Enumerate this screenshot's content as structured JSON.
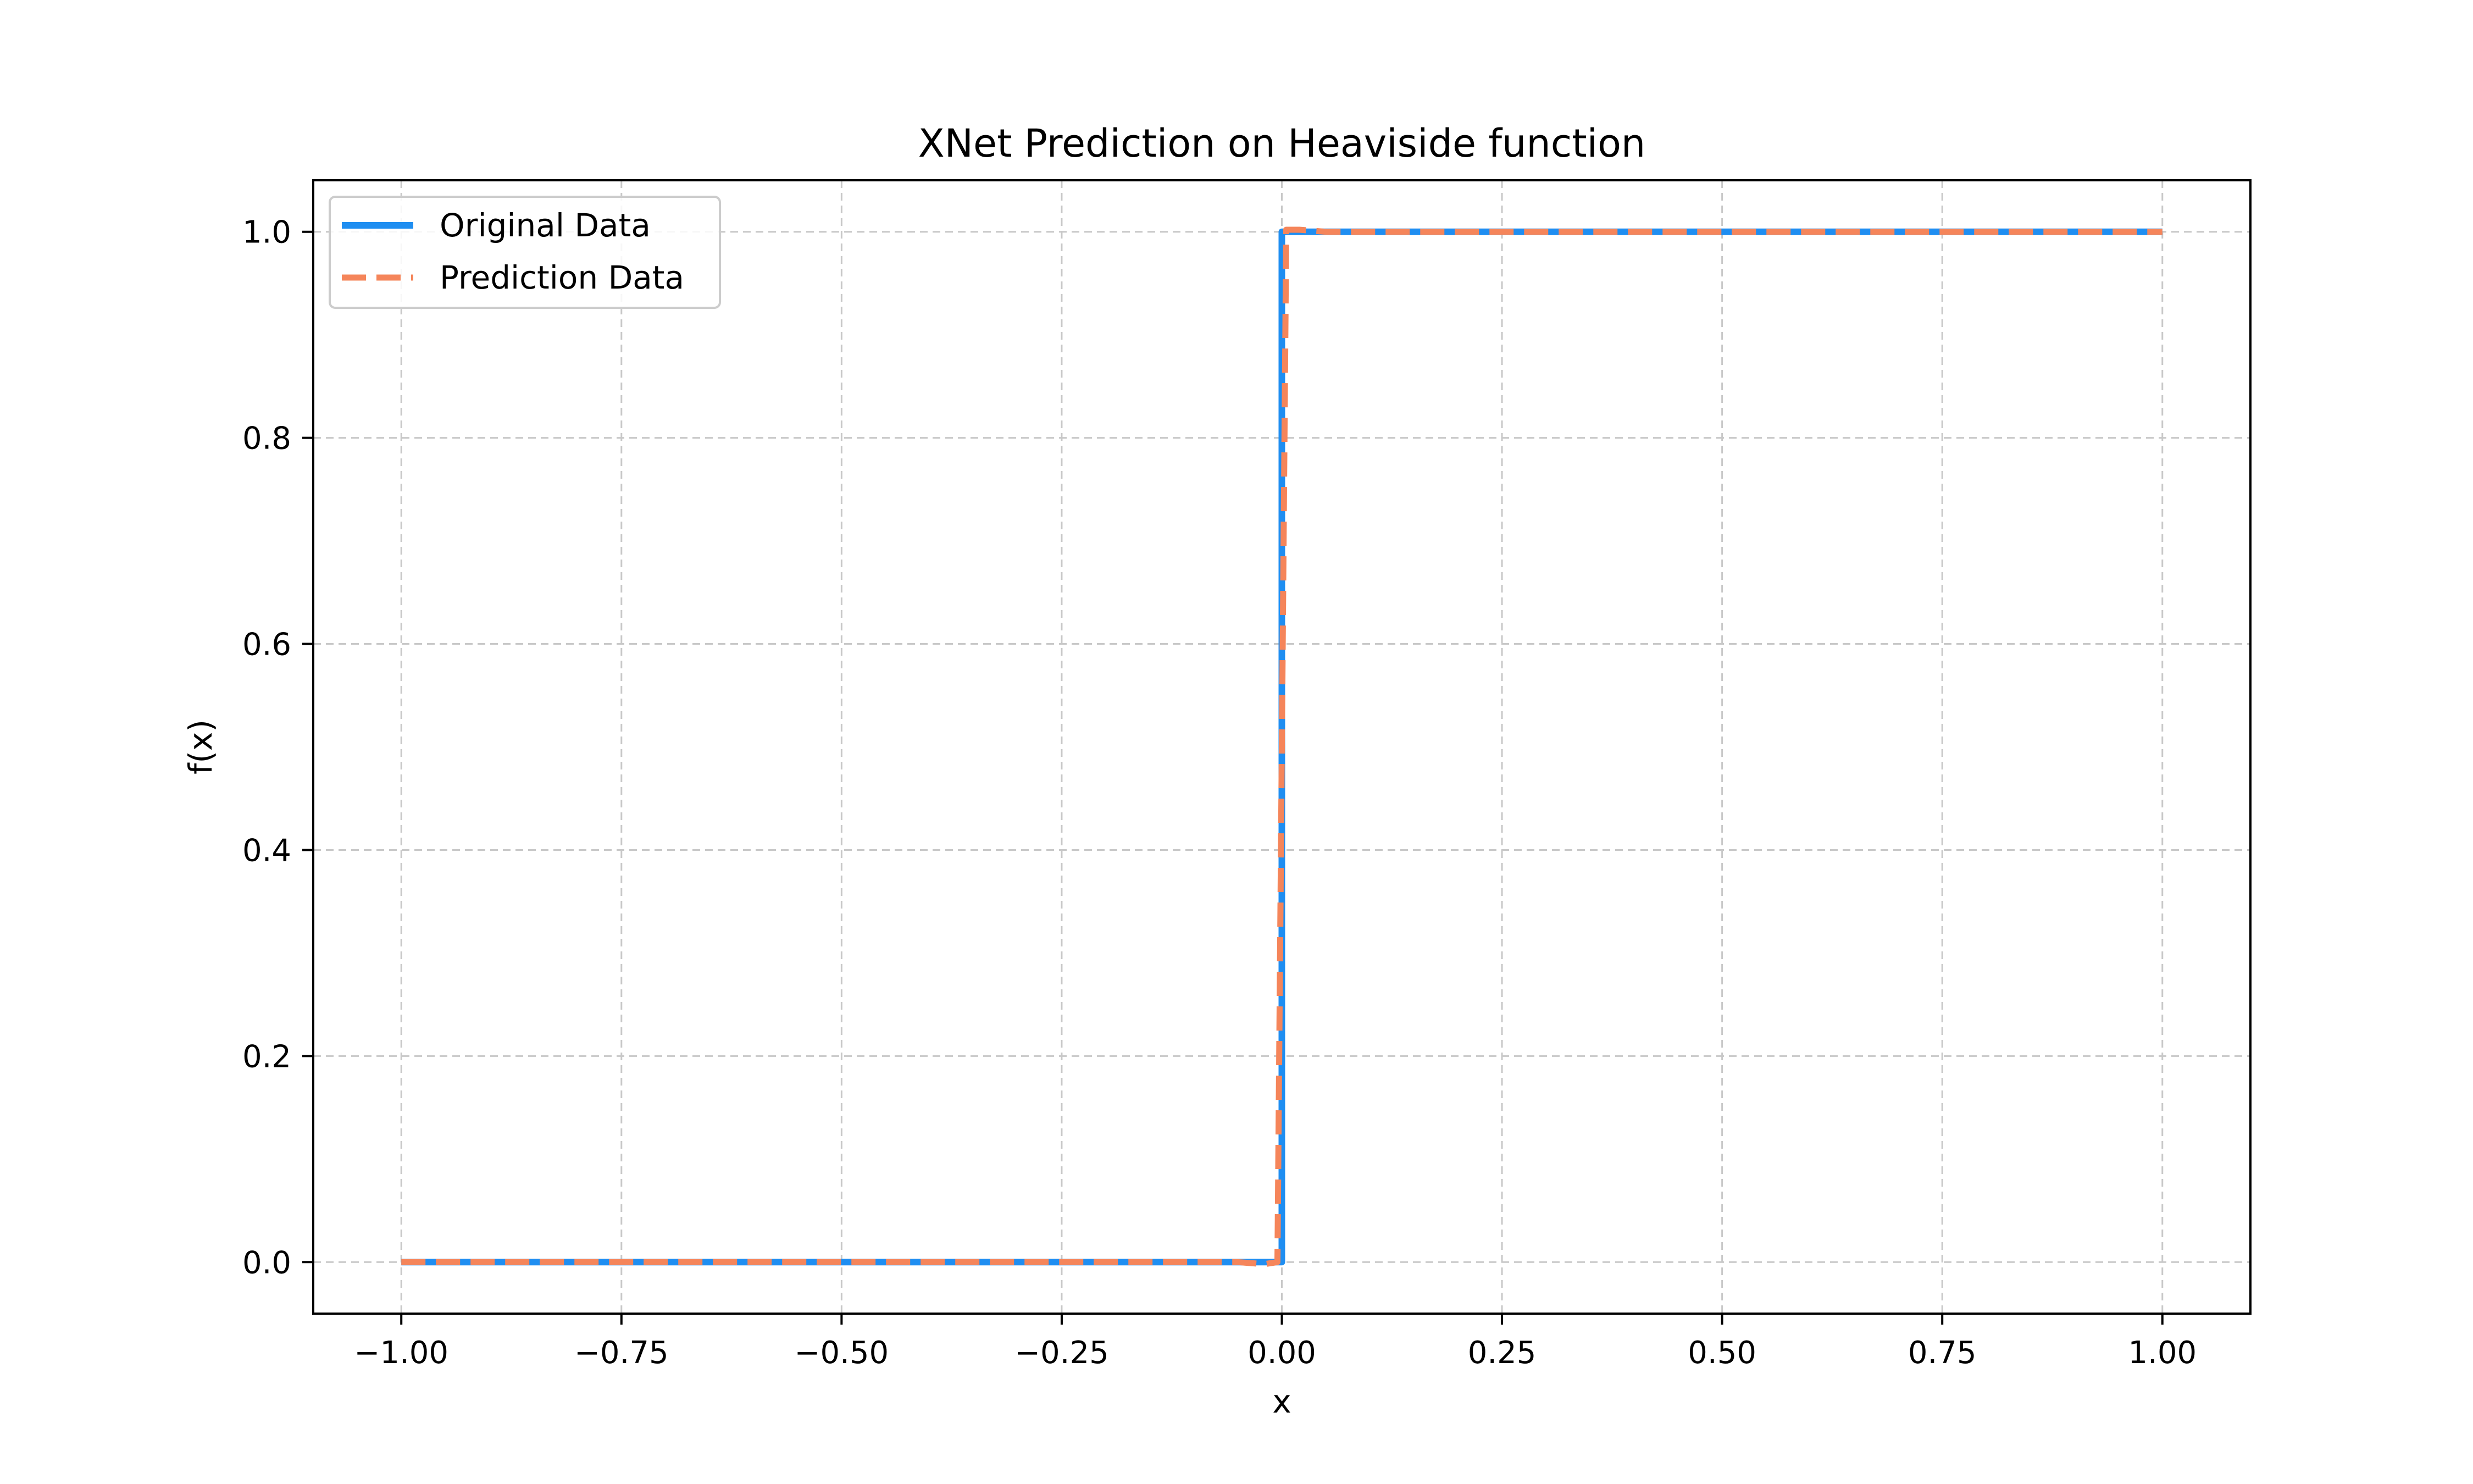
{
  "chart_data": {
    "type": "line",
    "title": "XNet Prediction on Heaviside function",
    "xlabel": "x",
    "ylabel": "f(x)",
    "xlim": [
      -1.1,
      1.1
    ],
    "ylim": [
      -0.05,
      1.05
    ],
    "xticks": [
      -1.0,
      -0.75,
      -0.5,
      -0.25,
      0.0,
      0.25,
      0.5,
      0.75,
      1.0
    ],
    "xtick_labels": [
      "−1.00",
      "−0.75",
      "−0.50",
      "−0.25",
      "0.00",
      "0.25",
      "0.50",
      "0.75",
      "1.00"
    ],
    "yticks": [
      0.0,
      0.2,
      0.4,
      0.6,
      0.8,
      1.0
    ],
    "ytick_labels": [
      "0.0",
      "0.2",
      "0.4",
      "0.6",
      "0.8",
      "1.0"
    ],
    "grid": true,
    "legend_position": "top-left",
    "series": [
      {
        "name": "Original Data",
        "color": "#1f8ef1",
        "style": "solid",
        "x": [
          -1.0,
          0.0,
          0.0,
          1.0
        ],
        "y": [
          0.0,
          0.0,
          1.0,
          1.0
        ]
      },
      {
        "name": "Prediction Data",
        "color": "#f5855a",
        "style": "dashed",
        "x": [
          -1.0,
          -0.5,
          -0.05,
          -0.02,
          -0.005,
          0.0,
          0.005,
          0.02,
          0.05,
          0.5,
          1.0
        ],
        "y": [
          0.0,
          0.0,
          0.0,
          -0.002,
          0.0,
          0.5,
          1.002,
          1.002,
          1.0,
          1.0,
          1.0
        ]
      }
    ]
  }
}
